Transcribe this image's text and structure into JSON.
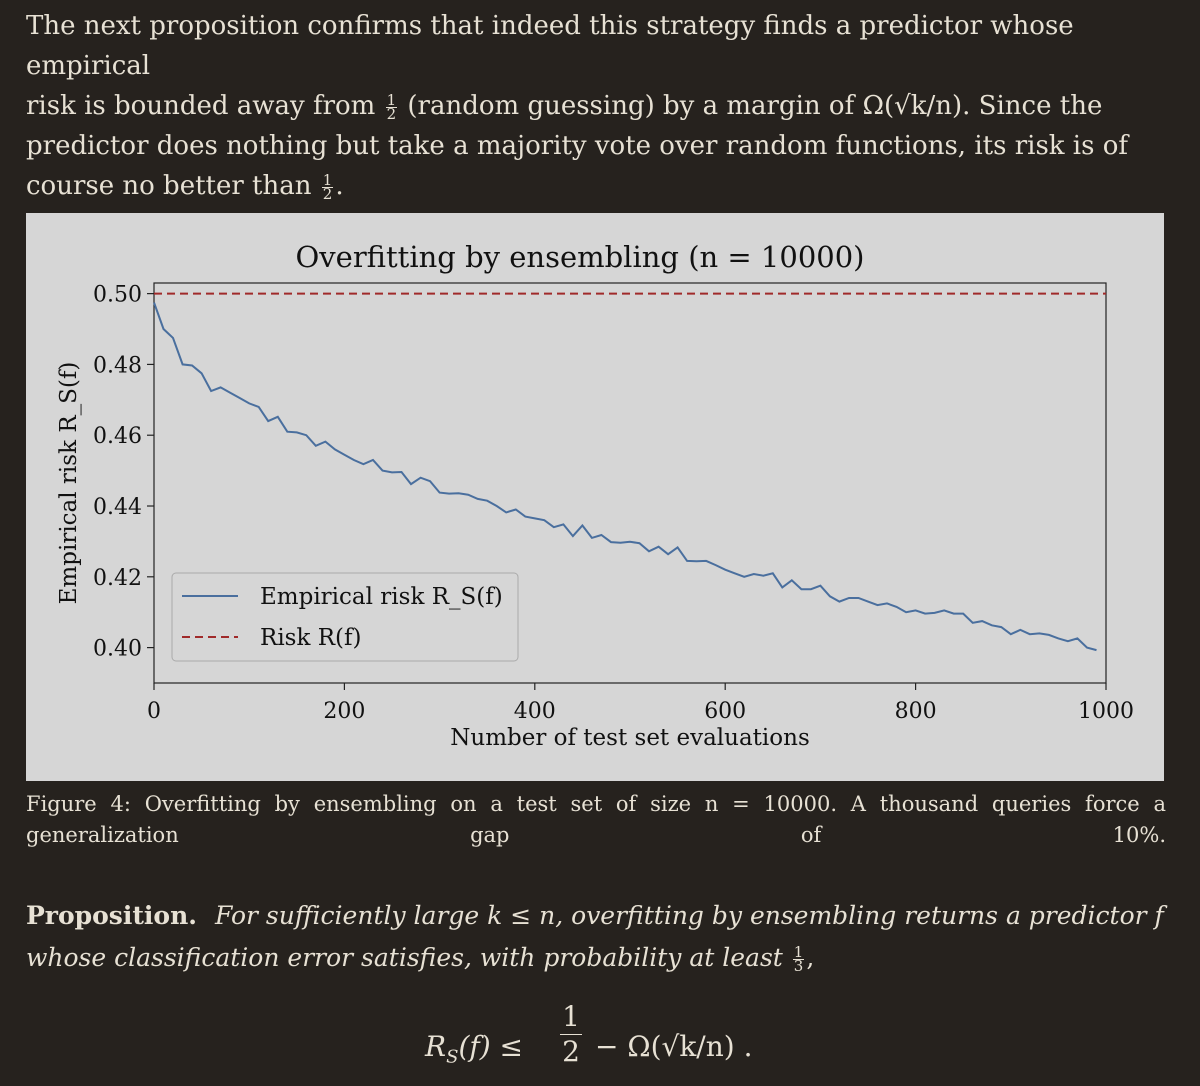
{
  "intro": {
    "line1": "The next proposition confirms that indeed this strategy finds a predictor whose empirical",
    "line2_a": "risk is bounded away from",
    "half_num": "1",
    "half_den": "2",
    "line2_b": "(random guessing) by a margin of Ω(√k/n). Since the",
    "line3": "predictor does nothing but take a majority vote over random functions, its risk is of",
    "line4_a": "course no better than",
    "line4_b": "."
  },
  "chart_data": {
    "type": "line",
    "title": "Overfitting by ensembling (n = 10000)",
    "xlabel": "Number of test set evaluations",
    "ylabel": "Empirical risk R_S(f)",
    "xlim": [
      0,
      1000
    ],
    "ylim": [
      0.39,
      0.503
    ],
    "xticks": [
      0,
      200,
      400,
      600,
      800,
      1000
    ],
    "xtick_labels": [
      "0",
      "200",
      "400",
      "600",
      "800",
      "1000"
    ],
    "yticks": [
      0.4,
      0.42,
      0.44,
      0.46,
      0.48,
      0.5
    ],
    "ytick_labels": [
      "0.40",
      "0.42",
      "0.44",
      "0.46",
      "0.48",
      "0.50"
    ],
    "legend": {
      "placement": "lower-left",
      "entries": [
        "Empirical risk R_S(f)",
        "Risk R(f)"
      ]
    },
    "series": [
      {
        "name": "Empirical risk R_S(f)",
        "color": "#4a6f9e",
        "style": "solid",
        "x": [
          0,
          10,
          20,
          30,
          40,
          50,
          60,
          70,
          80,
          90,
          100,
          110,
          120,
          130,
          140,
          150,
          160,
          170,
          180,
          190,
          200,
          210,
          220,
          230,
          240,
          250,
          260,
          270,
          280,
          290,
          300,
          310,
          320,
          330,
          340,
          350,
          360,
          370,
          380,
          390,
          400,
          410,
          420,
          430,
          440,
          450,
          460,
          470,
          480,
          490,
          500,
          510,
          520,
          530,
          540,
          550,
          560,
          570,
          580,
          590,
          600,
          610,
          620,
          630,
          640,
          650,
          660,
          670,
          680,
          690,
          700,
          710,
          720,
          730,
          740,
          750,
          760,
          770,
          780,
          790,
          800,
          810,
          820,
          830,
          840,
          850,
          860,
          870,
          880,
          890,
          900,
          910,
          920,
          930,
          940,
          950,
          960,
          970,
          980,
          990
        ],
        "y": [
          0.4975,
          0.49,
          0.4875,
          0.48,
          0.4797,
          0.4775,
          0.4725,
          0.4735,
          0.472,
          0.4705,
          0.469,
          0.468,
          0.464,
          0.4652,
          0.461,
          0.4608,
          0.46,
          0.457,
          0.4582,
          0.456,
          0.4545,
          0.453,
          0.4518,
          0.453,
          0.45,
          0.4495,
          0.4496,
          0.4462,
          0.448,
          0.447,
          0.4438,
          0.4435,
          0.4436,
          0.4432,
          0.442,
          0.4415,
          0.44,
          0.4382,
          0.439,
          0.437,
          0.4365,
          0.436,
          0.434,
          0.4348,
          0.4315,
          0.4345,
          0.431,
          0.4318,
          0.4298,
          0.4296,
          0.4299,
          0.4295,
          0.4272,
          0.4285,
          0.4264,
          0.4283,
          0.4245,
          0.4244,
          0.4245,
          0.4233,
          0.422,
          0.421,
          0.42,
          0.4208,
          0.4203,
          0.421,
          0.417,
          0.419,
          0.4165,
          0.4165,
          0.4175,
          0.4145,
          0.413,
          0.414,
          0.414,
          0.413,
          0.412,
          0.4125,
          0.4115,
          0.41,
          0.4105,
          0.4096,
          0.4098,
          0.4105,
          0.4096,
          0.4096,
          0.407,
          0.4075,
          0.4063,
          0.4058,
          0.4038,
          0.405,
          0.4038,
          0.404,
          0.4036,
          0.4026,
          0.4018,
          0.4026,
          0.4,
          0.3993
        ]
      },
      {
        "name": "Risk R(f)",
        "color": "#a02a2a",
        "style": "dashed",
        "x": [
          0,
          1000
        ],
        "y": [
          0.5,
          0.5
        ]
      }
    ]
  },
  "caption": {
    "text": "Figure 4: Overfitting by ensembling on a test set of size n = 10000. A thousand queries force a generalization gap of 10%."
  },
  "proposition": {
    "label": "Proposition.",
    "text_a": "For sufficiently large k ≤ n, overfitting by ensembling returns a predictor f",
    "text_b": "whose classification error satisfies, with probability at least",
    "third_num": "1",
    "third_den": "3",
    "text_c": ","
  },
  "equation": {
    "lhs": "R",
    "lhs_sub": "S",
    "lhs_arg": "(f) ≤",
    "frac_num": "1",
    "frac_den": "2",
    "rhs": "− Ω(√k/n) ."
  }
}
